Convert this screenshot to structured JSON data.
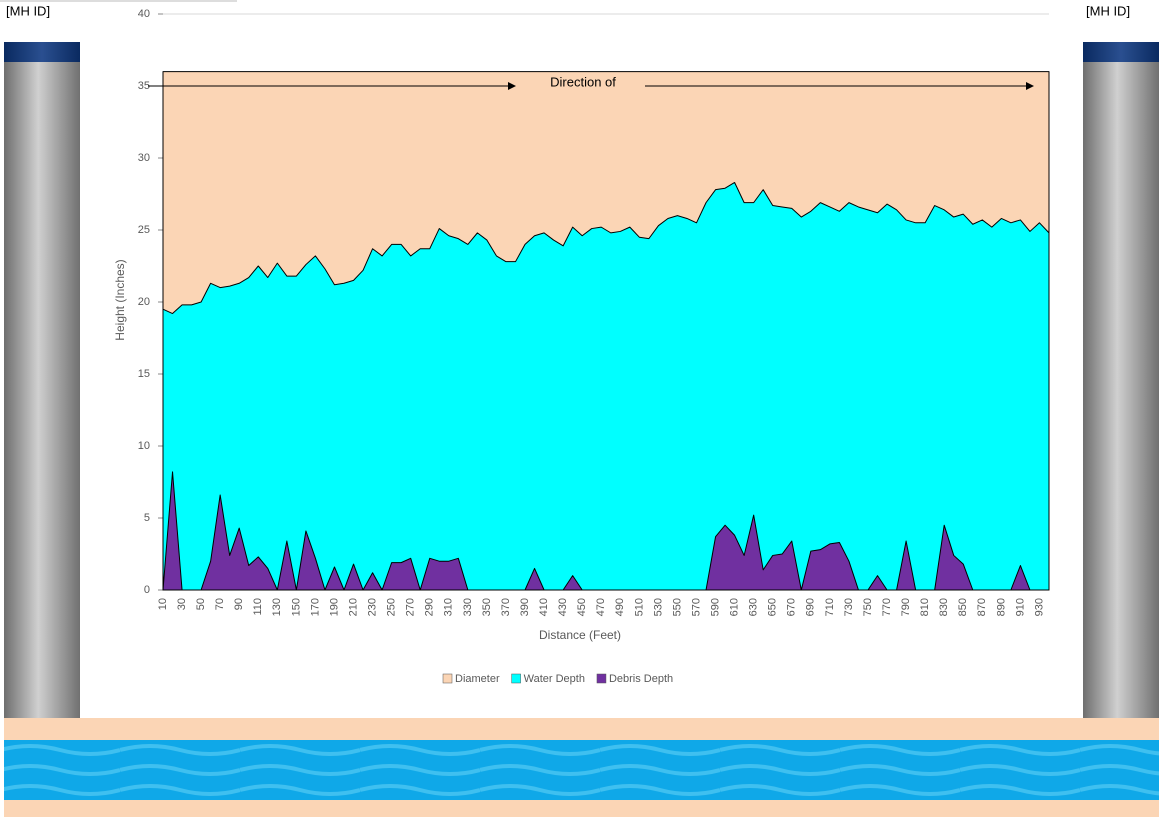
{
  "left_label": "[MH ID]",
  "right_label": "[MH ID]",
  "chart_data": {
    "type": "area",
    "x_label": "Distance (Feet)",
    "y_label": "Height (Inches)",
    "annotation": "Direction of",
    "categories": [
      10,
      null,
      30,
      null,
      50,
      null,
      70,
      null,
      90,
      null,
      110,
      null,
      130,
      null,
      150,
      null,
      170,
      null,
      190,
      null,
      210,
      null,
      230,
      null,
      250,
      null,
      270,
      null,
      290,
      null,
      310,
      null,
      330,
      null,
      350,
      null,
      370,
      null,
      390,
      null,
      410,
      null,
      430,
      null,
      450,
      null,
      470,
      null,
      490,
      null,
      510,
      null,
      530,
      null,
      550,
      null,
      570,
      null,
      590,
      null,
      610,
      null,
      630,
      null,
      650,
      null,
      670,
      null,
      690,
      null,
      710,
      null,
      730,
      null,
      750,
      null,
      770,
      null,
      790,
      null,
      810,
      null,
      830,
      null,
      850,
      null,
      870,
      null,
      890,
      null,
      910,
      null,
      930,
      null
    ],
    "series": [
      {
        "name": "Diameter",
        "color": "#fbd5b5",
        "values": [
          36,
          36,
          36,
          36,
          36,
          36,
          36,
          36,
          36,
          36,
          36,
          36,
          36,
          36,
          36,
          36,
          36,
          36,
          36,
          36,
          36,
          36,
          36,
          36,
          36,
          36,
          36,
          36,
          36,
          36,
          36,
          36,
          36,
          36,
          36,
          36,
          36,
          36,
          36,
          36,
          36,
          36,
          36,
          36,
          36,
          36,
          36,
          36,
          36,
          36,
          36,
          36,
          36,
          36,
          36,
          36,
          36,
          36,
          36,
          36,
          36,
          36,
          36,
          36,
          36,
          36,
          36,
          36,
          36,
          36,
          36,
          36,
          36,
          36,
          36,
          36,
          36,
          36,
          36,
          36,
          36,
          36,
          36,
          36,
          36,
          36,
          36,
          36,
          36,
          36,
          36,
          36,
          36,
          36
        ]
      },
      {
        "name": "Water Depth",
        "color": "#00ffff",
        "values": [
          19.5,
          19.2,
          19.8,
          19.8,
          20.0,
          21.3,
          21.0,
          21.1,
          21.3,
          21.7,
          22.5,
          21.7,
          22.7,
          21.8,
          21.8,
          22.6,
          23.2,
          22.3,
          21.2,
          21.3,
          21.5,
          22.2,
          23.7,
          23.2,
          24.0,
          24.0,
          23.2,
          23.7,
          23.7,
          25.1,
          24.6,
          24.4,
          24.0,
          24.8,
          24.3,
          23.2,
          22.8,
          22.8,
          24.0,
          24.6,
          24.8,
          24.3,
          23.9,
          25.2,
          24.6,
          25.1,
          25.2,
          24.8,
          24.9,
          25.2,
          24.5,
          24.4,
          25.3,
          25.8,
          26.0,
          25.8,
          25.5,
          26.9,
          27.8,
          27.9,
          28.3,
          26.9,
          26.9,
          27.8,
          26.7,
          26.6,
          26.5,
          25.9,
          26.3,
          26.9,
          26.6,
          26.3,
          26.9,
          26.6,
          26.4,
          26.2,
          26.8,
          26.4,
          25.7,
          25.5,
          25.5,
          26.7,
          26.4,
          25.9,
          26.1,
          25.4,
          25.7,
          25.2,
          25.8,
          25.5,
          25.7,
          24.9,
          25.5,
          24.8
        ]
      },
      {
        "name": "Debris Depth",
        "color": "#7030a0",
        "values": [
          0,
          8.2,
          0,
          0,
          0,
          2.0,
          6.6,
          2.4,
          4.3,
          1.7,
          2.3,
          1.5,
          0,
          3.4,
          0,
          4.1,
          2.2,
          0,
          1.6,
          0,
          1.8,
          0,
          1.2,
          0,
          1.9,
          1.9,
          2.2,
          0,
          2.2,
          2.0,
          2.0,
          2.2,
          0,
          0,
          0,
          0,
          0,
          0,
          0,
          1.5,
          0,
          0,
          0,
          1.0,
          0,
          0,
          0,
          0,
          0,
          0,
          0,
          0,
          0,
          0,
          0,
          0,
          0,
          0,
          3.7,
          4.5,
          3.8,
          2.4,
          5.2,
          1.4,
          2.4,
          2.5,
          3.4,
          0,
          2.7,
          2.8,
          3.2,
          3.3,
          2.0,
          0,
          0,
          1.0,
          0,
          0,
          3.4,
          0,
          0,
          0,
          4.5,
          2.4,
          1.8,
          0,
          0,
          0,
          0,
          0,
          1.7,
          0,
          0,
          0
        ]
      }
    ],
    "ylim": [
      0,
      40
    ],
    "yticks": [
      0,
      5,
      10,
      15,
      20,
      25,
      30,
      35,
      40
    ],
    "grid": true,
    "legend": "bottom"
  }
}
